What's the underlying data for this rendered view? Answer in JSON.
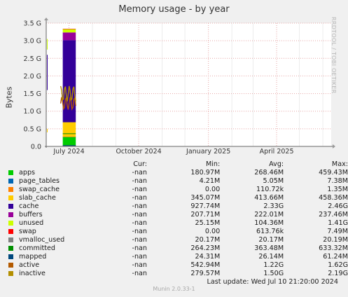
{
  "title": "Memory usage - by year",
  "ylabel": "Bytes",
  "watermark": "RRDTOOL / TOBI OETIKER",
  "legend_headers": {
    "cur": "Cur:",
    "min": "Min:",
    "avg": "Avg:",
    "max": "Max:"
  },
  "legend": [
    {
      "name": "apps",
      "color": "#00cc00",
      "cur": "-nan",
      "min": "180.97M",
      "avg": "268.46M",
      "max": "459.43M"
    },
    {
      "name": "page_tables",
      "color": "#0066b3",
      "cur": "-nan",
      "min": "4.21M",
      "avg": "5.05M",
      "max": "7.38M"
    },
    {
      "name": "swap_cache",
      "color": "#ff8000",
      "cur": "-nan",
      "min": "0.00",
      "avg": "110.72k",
      "max": "1.35M"
    },
    {
      "name": "slab_cache",
      "color": "#ffcc00",
      "cur": "-nan",
      "min": "345.07M",
      "avg": "413.66M",
      "max": "458.36M"
    },
    {
      "name": "cache",
      "color": "#330099",
      "cur": "-nan",
      "min": "927.74M",
      "avg": "2.33G",
      "max": "2.46G"
    },
    {
      "name": "buffers",
      "color": "#990099",
      "cur": "-nan",
      "min": "207.71M",
      "avg": "222.01M",
      "max": "237.46M"
    },
    {
      "name": "unused",
      "color": "#ccff00",
      "cur": "-nan",
      "min": "25.15M",
      "avg": "104.36M",
      "max": "1.41G"
    },
    {
      "name": "swap",
      "color": "#ff0000",
      "cur": "-nan",
      "min": "0.00",
      "avg": "613.76k",
      "max": "7.49M"
    },
    {
      "name": "vmalloc_used",
      "color": "#808080",
      "cur": "-nan",
      "min": "20.17M",
      "avg": "20.17M",
      "max": "20.19M"
    },
    {
      "name": "committed",
      "color": "#008f00",
      "cur": "-nan",
      "min": "264.23M",
      "avg": "363.48M",
      "max": "633.32M"
    },
    {
      "name": "mapped",
      "color": "#00487d",
      "cur": "-nan",
      "min": "24.31M",
      "avg": "26.14M",
      "max": "61.24M"
    },
    {
      "name": "active",
      "color": "#b35a00",
      "cur": "-nan",
      "min": "542.94M",
      "avg": "1.22G",
      "max": "1.62G"
    },
    {
      "name": "inactive",
      "color": "#b38f00",
      "cur": "-nan",
      "min": "279.57M",
      "avg": "1.50G",
      "max": "2.19G"
    }
  ],
  "last_update": "Last update:  Wed Jul 10 21:20:00 2024",
  "footer": "Munin 2.0.33-1",
  "chart_data": {
    "type": "area",
    "title": "Memory usage - by year",
    "ylabel": "Bytes",
    "ylim": [
      0,
      3.5
    ],
    "yunit": "G",
    "yticks": [
      0.0,
      0.5,
      1.0,
      1.5,
      2.0,
      2.5,
      3.0,
      3.5
    ],
    "ytick_labels": [
      "0.0",
      "0.5 G",
      "1.0 G",
      "1.5 G",
      "2.0 G",
      "2.5 G",
      "3.0 G",
      "3.5 G"
    ],
    "xticks": [
      "July 2024",
      "October 2024",
      "January 2025",
      "April 2025"
    ],
    "grid": true,
    "stack_interval": [
      "2024-06-21",
      "2024-07-10"
    ],
    "stack_G": [
      {
        "name": "apps",
        "value": 0.27
      },
      {
        "name": "page_tables",
        "value": 0.005
      },
      {
        "name": "swap_cache",
        "value": 0.0001
      },
      {
        "name": "slab_cache",
        "value": 0.41
      },
      {
        "name": "cache",
        "value": 2.33
      },
      {
        "name": "buffers",
        "value": 0.22
      },
      {
        "name": "unused",
        "value": 0.1
      },
      {
        "name": "swap",
        "value": 0.0006
      }
    ],
    "lines_G": [
      {
        "name": "vmalloc_used",
        "value": 0.02
      },
      {
        "name": "committed",
        "value": 0.36
      },
      {
        "name": "mapped",
        "value": 0.026
      },
      {
        "name": "active",
        "value": 1.22
      },
      {
        "name": "inactive",
        "value": 1.5
      }
    ]
  }
}
